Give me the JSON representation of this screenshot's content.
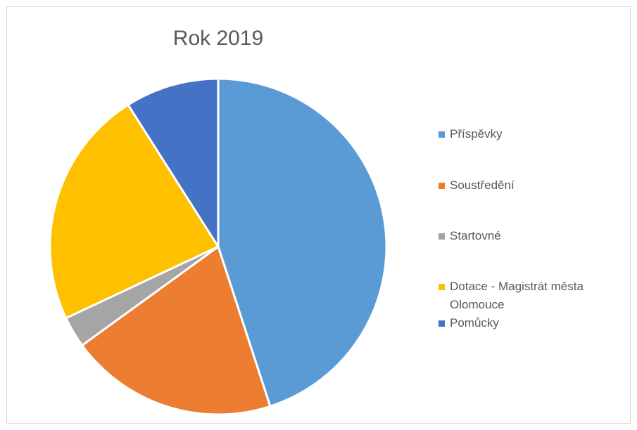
{
  "chart_data": {
    "type": "pie",
    "title": "Rok 2019",
    "categories": [
      "Příspěvky",
      "Soustředění",
      "Startovné",
      "Dotace - Magistrát města Olomouce",
      "Pomůcky"
    ],
    "values": [
      45,
      20,
      3,
      23,
      9
    ],
    "unit": "percent (estimated shares)",
    "colors": [
      "#5b9bd5",
      "#ed7d31",
      "#a5a5a5",
      "#ffc000",
      "#4472c4"
    ],
    "start_angle_deg": 0,
    "direction": "clockwise",
    "legend_position": "right"
  }
}
